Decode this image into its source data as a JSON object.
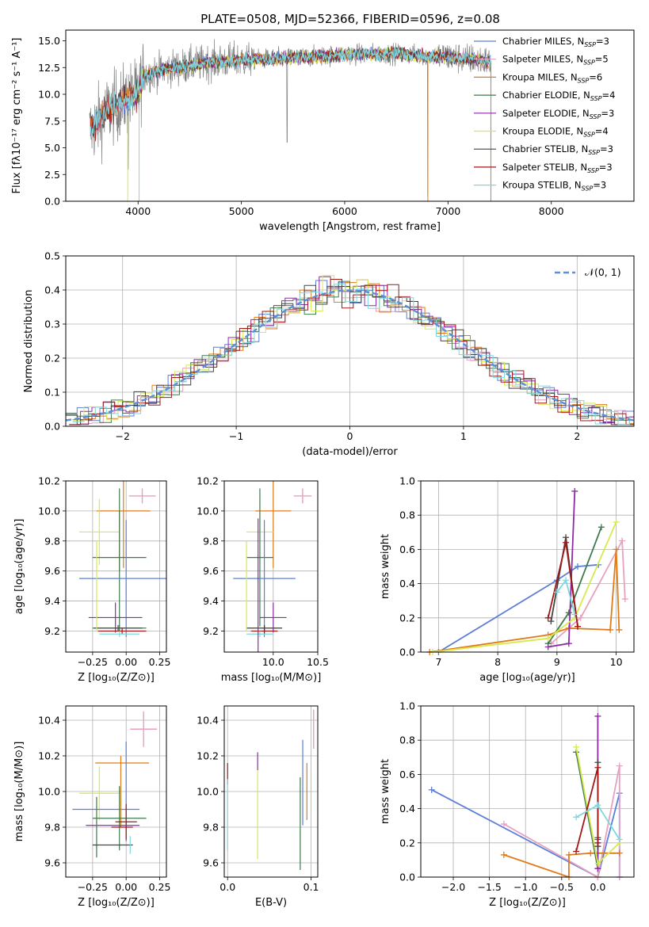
{
  "colors": {
    "chab_miles": "#5b7fd6",
    "salp_miles": "#e8a0c0",
    "krou_miles": "#e07b1a",
    "chab_elodie": "#3f7a4f",
    "salp_elodie": "#8e2aa8",
    "krou_elodie": "#d8ea4a",
    "chab_stelib": "#444444",
    "salp_stelib": "#a01818",
    "krou_stelib": "#7fd8e0",
    "gauss": "#5b8fd6",
    "spectrum": "#808080"
  },
  "chart_data": [
    {
      "id": "spectrum",
      "type": "line",
      "title": "PLATE=0508, MJD=52366, FIBERID=0596, z=0.08",
      "xlabel": "wavelength [Angstrom, rest frame]",
      "ylabel": "Flux [fλ10⁻¹⁷ erg cm⁻² s⁻¹ A⁻¹]",
      "xlim": [
        3300,
        8800
      ],
      "ylim": [
        0,
        16
      ],
      "xticks": [
        "4000",
        "5000",
        "6000",
        "7000",
        "8000"
      ],
      "yticks": [
        "0.0",
        "2.5",
        "5.0",
        "7.5",
        "10.0",
        "12.5",
        "15.0"
      ],
      "legend": "upper right",
      "continuum": {
        "x": [
          3500,
          3700,
          3900,
          4000,
          4050,
          4300,
          4700,
          5000,
          5500,
          6000,
          6500,
          7000,
          7300,
          7420
        ],
        "y": [
          6.2,
          8.4,
          9.6,
          10.0,
          11.8,
          12.4,
          13.0,
          13.2,
          13.4,
          13.7,
          13.8,
          13.5,
          13.2,
          13.0
        ]
      },
      "series": [
        {
          "name": "Chabrier MILES, N_SSP=3"
        },
        {
          "name": "Salpeter MILES, N_SSP=5"
        },
        {
          "name": "Kroupa MILES, N_SSP=6"
        },
        {
          "name": "Chabrier ELODIE, N_SSP=4"
        },
        {
          "name": "Salpeter ELODIE, N_SSP=3"
        },
        {
          "name": "Kroupa ELODIE, N_SSP=4"
        },
        {
          "name": "Chabrier STELIB, N_SSP=3"
        },
        {
          "name": "Salpeter STELIB, N_SSP=3"
        },
        {
          "name": "Kroupa STELIB, N_SSP=3"
        }
      ]
    },
    {
      "id": "residuals",
      "type": "line",
      "xlabel": "(data-model)/error",
      "ylabel": "Normed distribution",
      "xlim": [
        -2.5,
        2.5
      ],
      "ylim": [
        0,
        0.5
      ],
      "xticks": [
        "−2",
        "−1",
        "0",
        "1",
        "2"
      ],
      "yticks": [
        "0.0",
        "0.1",
        "0.2",
        "0.3",
        "0.4",
        "0.5"
      ],
      "legend": "upper right",
      "gauss_label": "𝒩(0, 1)"
    },
    {
      "id": "age_Z",
      "type": "scatter",
      "xlabel": "Z [log₁₀(Z/Z⊙)]",
      "ylabel": "age  [log₁₀(age/yr)]",
      "xlim": [
        -0.45,
        0.3
      ],
      "ylim": [
        9.06,
        10.2
      ],
      "xticks": [
        "−0.25",
        "0.00",
        "0.25"
      ],
      "yticks": [
        "9.2",
        "9.4",
        "9.6",
        "9.8",
        "10.0",
        "10.2"
      ],
      "points": [
        {
          "s": "salp_miles",
          "x": 0.12,
          "y": 10.1,
          "ex": 0.1,
          "ey": 0.05
        },
        {
          "s": "krou_miles",
          "x": -0.02,
          "y": 10.0,
          "ex": 0.2,
          "ey": 0.38
        },
        {
          "s": "krou_miles",
          "x": -0.05,
          "y": 9.8,
          "ex": 0.0,
          "ey": 0.2
        },
        {
          "s": "krou_elodie",
          "x": -0.2,
          "y": 9.86,
          "ex": 0.15,
          "ey": 0.22
        },
        {
          "s": "chab_elodie",
          "x": -0.05,
          "y": 9.69,
          "ex": 0.2,
          "ey": 0.46
        },
        {
          "s": "chab_miles",
          "x": 0.0,
          "y": 9.55,
          "ex": 0.35,
          "ey": 0.39
        },
        {
          "s": "salp_elodie",
          "x": -0.08,
          "y": 9.29,
          "ex": 0.2,
          "ey": 0.1
        },
        {
          "s": "chab_elodie",
          "x": -0.05,
          "y": 9.22,
          "ex": 0.2,
          "ey": 0.02
        },
        {
          "s": "chab_stelib",
          "x": -0.06,
          "y": 9.22,
          "ex": 0.18,
          "ey": 0.02
        },
        {
          "s": "salp_stelib",
          "x": -0.03,
          "y": 9.2,
          "ex": 0.18,
          "ey": 0.02
        },
        {
          "s": "krou_stelib",
          "x": -0.05,
          "y": 9.18,
          "ex": 0.15,
          "ey": 0.02
        },
        {
          "s": "krou_elodie",
          "x": -0.22,
          "y": 9.5,
          "ex": 0.0,
          "ey": 0.3
        }
      ]
    },
    {
      "id": "age_mass",
      "type": "scatter",
      "xlabel": "mass [log₁₀(M/M⊙)]",
      "ylabel": "",
      "xlim": [
        9.45,
        10.5
      ],
      "ylim": [
        9.06,
        10.2
      ],
      "xticks": [
        "10.0",
        "10.5"
      ],
      "yticks": [
        "9.2",
        "9.4",
        "9.6",
        "9.8",
        "10.0",
        "10.2"
      ],
      "points": [
        {
          "s": "salp_miles",
          "x": 10.33,
          "y": 10.1,
          "ex": 0.1,
          "ey": 0.05
        },
        {
          "s": "krou_miles",
          "x": 10.0,
          "y": 10.0,
          "ex": 0.2,
          "ey": 0.38
        },
        {
          "s": "krou_elodie",
          "x": 9.85,
          "y": 9.86,
          "ex": 0.15,
          "ey": 0.22
        },
        {
          "s": "chab_elodie",
          "x": 9.85,
          "y": 9.69,
          "ex": 0.15,
          "ey": 0.46
        },
        {
          "s": "chab_miles",
          "x": 9.9,
          "y": 9.55,
          "ex": 0.35,
          "ey": 0.39
        },
        {
          "s": "salp_elodie",
          "x": 10.0,
          "y": 9.29,
          "ex": 0.15,
          "ey": 0.1
        },
        {
          "s": "chab_elodie",
          "x": 9.9,
          "y": 9.22,
          "ex": 0.2,
          "ey": 0.02
        },
        {
          "s": "chab_stelib",
          "x": 9.9,
          "y": 9.22,
          "ex": 0.2,
          "ey": 0.02
        },
        {
          "s": "salp_stelib",
          "x": 9.9,
          "y": 9.2,
          "ex": 0.15,
          "ey": 0.02
        },
        {
          "s": "krou_stelib",
          "x": 9.85,
          "y": 9.18,
          "ex": 0.15,
          "ey": 0.02
        },
        {
          "s": "salp_elodie",
          "x": 9.83,
          "y": 9.5,
          "ex": 0.0,
          "ey": 0.45
        },
        {
          "s": "krou_elodie",
          "x": 9.7,
          "y": 9.5,
          "ex": 0.0,
          "ey": 0.3
        }
      ]
    },
    {
      "id": "weight_age",
      "type": "line",
      "xlabel": "age  [log₁₀(age/yr)]",
      "ylabel": "mass weight",
      "xlim": [
        6.7,
        10.3
      ],
      "ylim": [
        0,
        1
      ],
      "xticks": [
        "7",
        "8",
        "9",
        "10"
      ],
      "yticks": [
        "0.0",
        "0.2",
        "0.4",
        "0.6",
        "0.8",
        "1.0"
      ],
      "series": [
        {
          "s": "chab_miles",
          "x": [
            7.0,
            9.0,
            9.35,
            9.7
          ],
          "y": [
            0.0,
            0.42,
            0.5,
            0.51
          ]
        },
        {
          "s": "salp_miles",
          "x": [
            8.9,
            9.4,
            10.1,
            10.15
          ],
          "y": [
            0.05,
            0.2,
            0.65,
            0.31
          ]
        },
        {
          "s": "krou_miles",
          "x": [
            6.85,
            8.85,
            9.2,
            9.9,
            10.0,
            10.05
          ],
          "y": [
            0.0,
            0.1,
            0.14,
            0.13,
            0.6,
            0.13
          ]
        },
        {
          "s": "chab_elodie",
          "x": [
            8.85,
            9.2,
            9.75
          ],
          "y": [
            0.05,
            0.23,
            0.73
          ]
        },
        {
          "s": "salp_elodie",
          "x": [
            8.85,
            9.2,
            9.3
          ],
          "y": [
            0.03,
            0.05,
            0.94
          ]
        },
        {
          "s": "krou_elodie",
          "x": [
            6.9,
            8.85,
            9.3,
            10.0
          ],
          "y": [
            0.0,
            0.08,
            0.2,
            0.76
          ]
        },
        {
          "s": "chab_stelib",
          "x": [
            8.9,
            9.15,
            9.35
          ],
          "y": [
            0.18,
            0.67,
            0.15
          ]
        },
        {
          "s": "salp_stelib",
          "x": [
            8.85,
            9.15,
            9.35
          ],
          "y": [
            0.2,
            0.64,
            0.15
          ]
        },
        {
          "s": "krou_stelib",
          "x": [
            9.0,
            9.15,
            9.3
          ],
          "y": [
            0.35,
            0.42,
            0.22
          ]
        }
      ]
    },
    {
      "id": "mass_Z",
      "type": "scatter",
      "xlabel": "Z [log₁₀(Z/Z⊙)]",
      "ylabel": "mass [log₁₀(M/M⊙)]",
      "xlim": [
        -0.45,
        0.3
      ],
      "ylim": [
        9.52,
        10.48
      ],
      "xticks": [
        "−0.25",
        "0.00",
        "0.25"
      ],
      "yticks": [
        "9.6",
        "9.8",
        "10.0",
        "10.2",
        "10.4"
      ],
      "points": [
        {
          "s": "salp_miles",
          "x": 0.13,
          "y": 10.35,
          "ex": 0.1,
          "ey": 0.1
        },
        {
          "s": "krou_miles",
          "x": -0.03,
          "y": 10.16,
          "ex": 0.2,
          "ey": 0.0
        },
        {
          "s": "krou_miles",
          "x": -0.04,
          "y": 10.0,
          "ex": 0.0,
          "ey": 0.2
        },
        {
          "s": "chab_miles",
          "x": 0.0,
          "y": 10.0,
          "ex": 0.0,
          "ey": 0.28
        },
        {
          "s": "krou_elodie",
          "x": -0.2,
          "y": 9.99,
          "ex": 0.15,
          "ey": 0.15
        },
        {
          "s": "chab_miles",
          "x": -0.15,
          "y": 9.9,
          "ex": 0.25,
          "ey": 0.0
        },
        {
          "s": "chab_elodie",
          "x": -0.05,
          "y": 9.85,
          "ex": 0.2,
          "ey": 0.18
        },
        {
          "s": "salp_stelib",
          "x": 0.0,
          "y": 9.83,
          "ex": 0.08,
          "ey": 0.1
        },
        {
          "s": "salp_elodie",
          "x": -0.1,
          "y": 9.81,
          "ex": 0.2,
          "ey": 0.0
        },
        {
          "s": "salp_stelib",
          "x": -0.03,
          "y": 9.8,
          "ex": 0.08,
          "ey": 0.0
        },
        {
          "s": "chab_elodie",
          "x": -0.22,
          "y": 9.8,
          "ex": 0.0,
          "ey": 0.17
        },
        {
          "s": "chab_stelib",
          "x": -0.1,
          "y": 9.7,
          "ex": 0.15,
          "ey": 0.0
        },
        {
          "s": "krou_stelib",
          "x": 0.03,
          "y": 9.7,
          "ex": 0.0,
          "ey": 0.05
        }
      ]
    },
    {
      "id": "mass_ebv",
      "type": "scatter",
      "xlabel": "E(B-V)",
      "ylabel": "",
      "xlim": [
        -0.004,
        0.108
      ],
      "ylim": [
        9.52,
        10.48
      ],
      "xticks": [
        "0.0",
        "0.1"
      ],
      "yticks": [
        "9.6",
        "9.8",
        "10.0",
        "10.2",
        "10.4"
      ],
      "points": [
        {
          "s": "salp_stelib",
          "x": 0.0,
          "y": 10.1,
          "ex": 0,
          "ey": 0.06
        },
        {
          "s": "krou_stelib",
          "x": 0.0,
          "y": 9.87,
          "ex": 0,
          "ey": 0.2
        },
        {
          "s": "salp_elodie",
          "x": 0.036,
          "y": 10.17,
          "ex": 0,
          "ey": 0.05
        },
        {
          "s": "krou_elodie",
          "x": 0.036,
          "y": 9.87,
          "ex": 0,
          "ey": 0.25
        },
        {
          "s": "chab_elodie",
          "x": 0.087,
          "y": 9.82,
          "ex": 0,
          "ey": 0.26
        },
        {
          "s": "chab_miles",
          "x": 0.09,
          "y": 10.05,
          "ex": 0,
          "ey": 0.24
        },
        {
          "s": "krou_miles",
          "x": 0.095,
          "y": 10.0,
          "ex": 0,
          "ey": 0.16
        },
        {
          "s": "salp_miles",
          "x": 0.103,
          "y": 10.35,
          "ex": 0,
          "ey": 0.11
        }
      ]
    },
    {
      "id": "weight_Z",
      "type": "line",
      "xlabel": "Z [log₁₀(Z/Z⊙)]",
      "ylabel": "mass weight",
      "xlim": [
        -2.45,
        0.5
      ],
      "ylim": [
        0,
        1
      ],
      "xticks": [
        "−2.0",
        "−1.5",
        "−1.0",
        "−0.5",
        "0.0"
      ],
      "yticks": [
        "0.0",
        "0.2",
        "0.4",
        "0.6",
        "0.8",
        "1.0"
      ],
      "series": [
        {
          "s": "chab_miles",
          "x": [
            -2.3,
            0.0,
            0.3,
            0.3
          ],
          "y": [
            0.51,
            0.0,
            0.49,
            0.0
          ]
        },
        {
          "s": "salp_miles",
          "x": [
            -1.3,
            0.0,
            0.3,
            0.3
          ],
          "y": [
            0.31,
            0.0,
            0.65,
            0.0
          ]
        },
        {
          "s": "krou_miles",
          "x": [
            -1.3,
            -0.4,
            -0.4,
            -0.1,
            0.3
          ],
          "y": [
            0.13,
            0.0,
            0.13,
            0.14,
            0.14
          ]
        },
        {
          "s": "chab_elodie",
          "x": [
            -0.3,
            0.0,
            0.0
          ],
          "y": [
            0.73,
            0.05,
            0.23
          ]
        },
        {
          "s": "salp_elodie",
          "x": [
            0.0,
            0.0,
            0.0
          ],
          "y": [
            0.94,
            0.05,
            0.22
          ]
        },
        {
          "s": "krou_elodie",
          "x": [
            -0.3,
            0.0,
            0.3
          ],
          "y": [
            0.76,
            0.08,
            0.2
          ]
        },
        {
          "s": "chab_stelib",
          "x": [
            0.0,
            0.0,
            0.0
          ],
          "y": [
            0.67,
            0.18,
            0.18
          ]
        },
        {
          "s": "salp_stelib",
          "x": [
            -0.3,
            0.0,
            0.0
          ],
          "y": [
            0.15,
            0.64,
            0.2
          ]
        },
        {
          "s": "krou_stelib",
          "x": [
            -0.3,
            0.0,
            0.3
          ],
          "y": [
            0.35,
            0.42,
            0.22
          ]
        }
      ]
    }
  ]
}
